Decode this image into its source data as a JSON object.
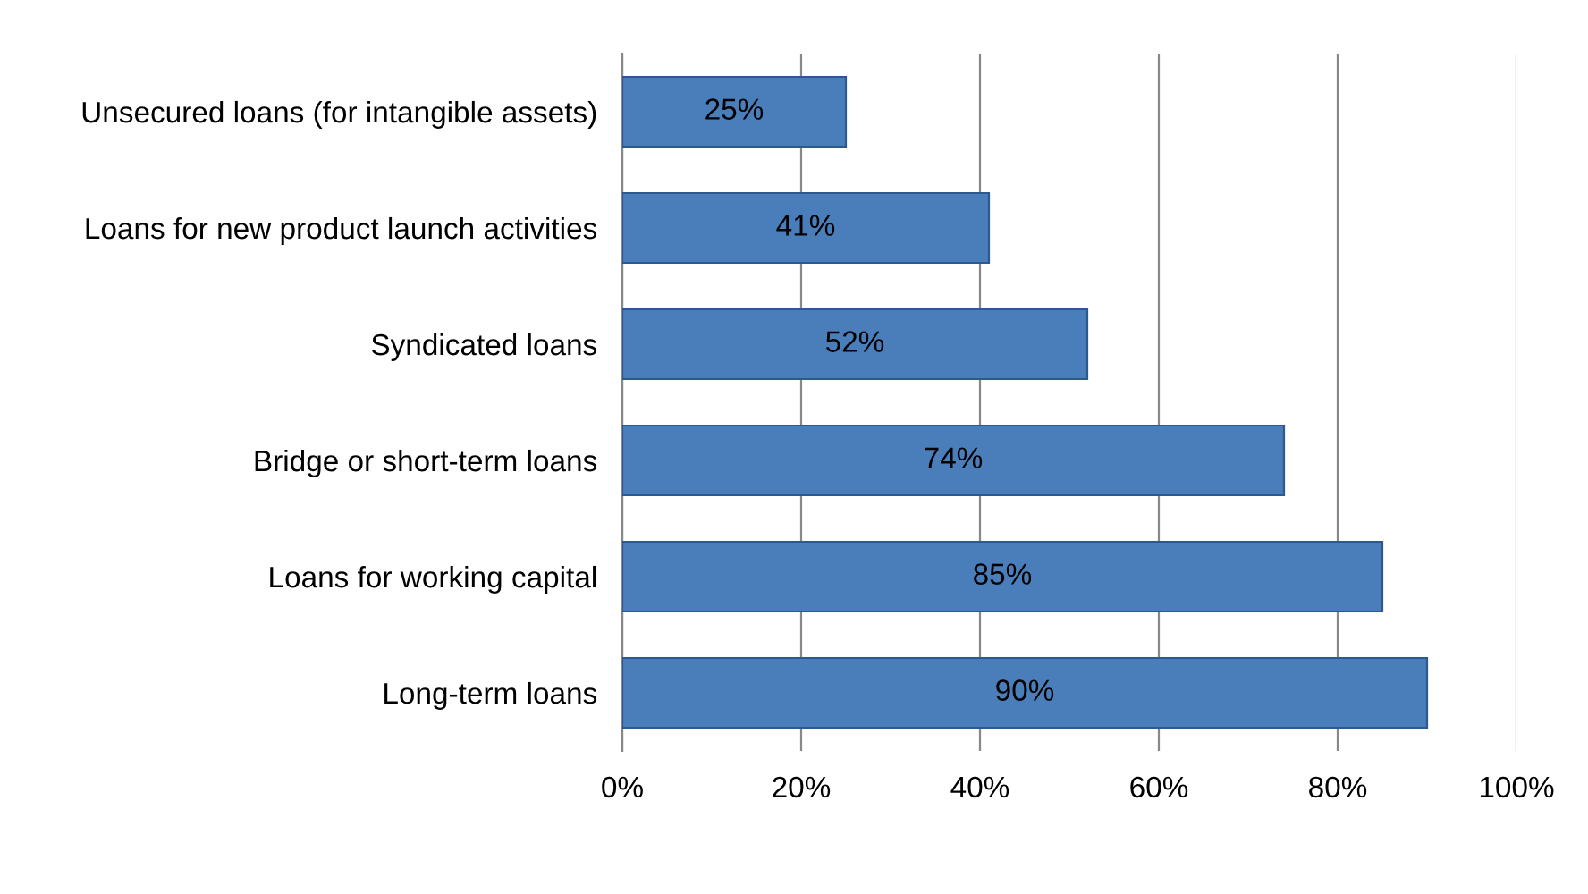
{
  "chart_data": {
    "type": "bar",
    "orientation": "horizontal",
    "categories": [
      "Unsecured loans (for intangible assets)",
      "Loans for new product launch activities",
      "Syndicated loans",
      "Bridge or short-term loans",
      "Loans for working capital",
      "Long-term loans"
    ],
    "values": [
      25,
      41,
      52,
      74,
      85,
      90
    ],
    "value_labels": [
      "25%",
      "41%",
      "52%",
      "74%",
      "85%",
      "90%"
    ],
    "color": "#4a7ebb",
    "xlim": [
      0,
      100
    ],
    "xticks": [
      {
        "value": 0,
        "label": "0%"
      },
      {
        "value": 20,
        "label": "20%"
      },
      {
        "value": 40,
        "label": "40%"
      },
      {
        "value": 60,
        "label": "60%"
      },
      {
        "value": 80,
        "label": "80%"
      },
      {
        "value": 100,
        "label": "100%"
      }
    ],
    "grid": "x",
    "legend": false
  }
}
